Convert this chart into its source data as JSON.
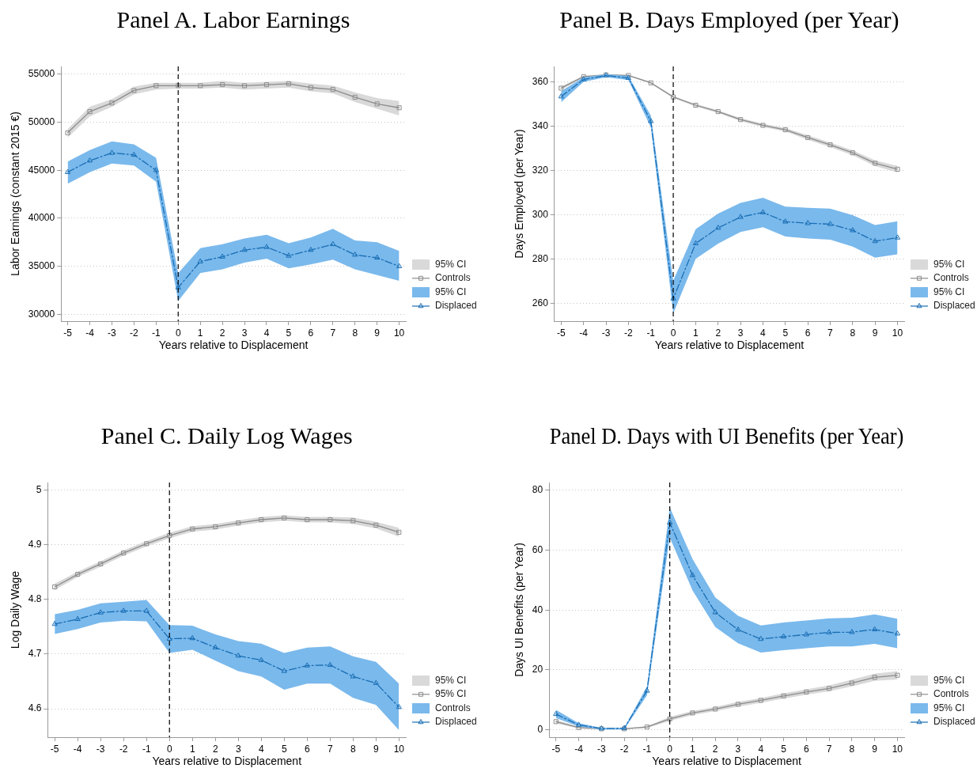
{
  "chart_data": [
    {
      "type": "line",
      "title": "Panel A. Labor Earnings",
      "xlabel": "Years relative to Displacement",
      "ylabel": "Labor Earnings (constant 2015 €)",
      "x": [
        -5,
        -4,
        -3,
        -2,
        -1,
        0,
        1,
        2,
        3,
        4,
        5,
        6,
        7,
        8,
        9,
        10
      ],
      "xlim": [
        -5.3,
        10.3
      ],
      "xticks": [
        -5,
        -4,
        -3,
        -2,
        -1,
        0,
        1,
        2,
        3,
        4,
        5,
        6,
        7,
        8,
        9,
        10
      ],
      "ylim": [
        29300,
        55800
      ],
      "yticks": [
        30000,
        35000,
        40000,
        45000,
        50000,
        55000
      ],
      "grid": "y",
      "legend": "bottom right",
      "annotations": [
        "95% CI",
        "95% CI"
      ],
      "ref_lines": [
        {
          "axis": "x",
          "value": 0,
          "line_style": "dashed",
          "color": "#000000"
        }
      ],
      "series": [
        {
          "name": "Controls",
          "color": "#8c8c8c",
          "marker": "square",
          "line_style": "solid",
          "values": [
            48900,
            51100,
            52000,
            53300,
            53800,
            53800,
            53800,
            53900,
            53800,
            53900,
            54000,
            53600,
            53400,
            52600,
            51900,
            51500
          ],
          "lower": [
            48400,
            50600,
            51600,
            52900,
            53400,
            53500,
            53500,
            53600,
            53400,
            53500,
            53600,
            53200,
            53000,
            52100,
            51400,
            50700
          ],
          "upper": [
            49300,
            51600,
            52400,
            53700,
            54100,
            54100,
            54100,
            54300,
            54100,
            54200,
            54300,
            54000,
            53800,
            53100,
            52500,
            52200
          ]
        },
        {
          "name": "Displaced",
          "color": "#196eb4",
          "marker": "triangle",
          "line_style": "dashed",
          "values": [
            44800,
            46000,
            46800,
            46600,
            45000,
            32800,
            35500,
            36000,
            36700,
            37000,
            36100,
            36700,
            37300,
            36200,
            35900,
            35000
          ],
          "lower": [
            43600,
            44800,
            45700,
            45500,
            43800,
            31400,
            34300,
            34700,
            35400,
            35800,
            34800,
            35200,
            35700,
            34700,
            34100,
            33500
          ],
          "upper": [
            45900,
            47100,
            48000,
            47700,
            46300,
            34300,
            36900,
            37300,
            37900,
            38300,
            37400,
            38000,
            38900,
            37700,
            37500,
            36600
          ]
        }
      ]
    },
    {
      "type": "line",
      "title": "Panel B. Days Employed (per Year)",
      "xlabel": "Years relative to Displacement",
      "ylabel": "Days Employed (per Year)",
      "x": [
        -5,
        -4,
        -3,
        -2,
        -1,
        0,
        1,
        2,
        3,
        4,
        5,
        6,
        7,
        8,
        9,
        10
      ],
      "xlim": [
        -5.3,
        10.3
      ],
      "xticks": [
        -5,
        -4,
        -3,
        -2,
        -1,
        0,
        1,
        2,
        3,
        4,
        5,
        6,
        7,
        8,
        9,
        10
      ],
      "ylim": [
        252,
        367
      ],
      "yticks": [
        260,
        280,
        300,
        320,
        340,
        360
      ],
      "grid": "y",
      "legend": "bottom right",
      "annotations": [
        "95% CI",
        "95% CI"
      ],
      "ref_lines": [
        {
          "axis": "x",
          "value": 0,
          "line_style": "dashed",
          "color": "#000000"
        }
      ],
      "series": [
        {
          "name": "Controls",
          "color": "#8c8c8c",
          "marker": "square",
          "line_style": "solid",
          "values": [
            357.2,
            362.4,
            363.2,
            362.9,
            359.6,
            353.2,
            349.5,
            346.6,
            343.0,
            340.4,
            338.4,
            334.9,
            331.6,
            328.0,
            323.3,
            320.6
          ],
          "lower": [
            356.4,
            362.0,
            362.9,
            362.6,
            359.2,
            352.8,
            348.9,
            346.0,
            342.3,
            339.7,
            337.6,
            333.9,
            330.6,
            326.9,
            322.0,
            319.1
          ],
          "upper": [
            358.0,
            362.8,
            363.5,
            363.2,
            360.0,
            353.6,
            350.1,
            347.2,
            343.7,
            341.1,
            339.2,
            335.9,
            332.6,
            329.1,
            324.6,
            322.1
          ]
        },
        {
          "name": "Displaced",
          "color": "#196eb4",
          "marker": "triangle",
          "line_style": "dashed",
          "values": [
            353.4,
            361.1,
            362.9,
            361.8,
            342.3,
            262.2,
            287.1,
            294.1,
            299.0,
            301.1,
            296.9,
            296.2,
            295.8,
            293.0,
            288.1,
            289.7
          ],
          "lower": [
            350.8,
            360.0,
            362.2,
            360.8,
            339.5,
            255.5,
            280.1,
            287.0,
            292.3,
            294.4,
            290.2,
            289.3,
            288.8,
            285.7,
            280.7,
            282.2
          ],
          "upper": [
            355.8,
            362.1,
            363.4,
            362.7,
            344.9,
            270.3,
            293.5,
            300.6,
            305.4,
            307.7,
            303.7,
            303.2,
            302.8,
            299.9,
            295.4,
            297.1
          ]
        }
      ]
    },
    {
      "type": "line",
      "title": "Panel C. Daily Log Wages",
      "xlabel": "Years relative to Displacement",
      "ylabel": "Log Daily Wage",
      "x": [
        -5,
        -4,
        -3,
        -2,
        -1,
        0,
        1,
        2,
        3,
        4,
        5,
        6,
        7,
        8,
        9,
        10
      ],
      "xlim": [
        -5.3,
        10.3
      ],
      "xticks": [
        -5,
        -4,
        -3,
        -2,
        -1,
        0,
        1,
        2,
        3,
        4,
        5,
        6,
        7,
        8,
        9,
        10
      ],
      "ylim": [
        4.548,
        5.014
      ],
      "yticks": [
        4.6,
        4.7,
        4.8,
        4.9,
        5
      ],
      "grid": "y",
      "legend": "bottom right",
      "annotations": [
        "95% CI",
        "Controls"
      ],
      "ref_lines": [
        {
          "axis": "x",
          "value": 0,
          "line_style": "dashed",
          "color": "#000000"
        }
      ],
      "series": [
        {
          "name": "95% CI",
          "color": "#8c8c8c",
          "marker": "square",
          "line_style": "solid",
          "values": [
            4.823,
            4.846,
            4.865,
            4.885,
            4.902,
            4.917,
            4.929,
            4.933,
            4.94,
            4.946,
            4.949,
            4.946,
            4.946,
            4.944,
            4.936,
            4.923
          ],
          "lower": [
            4.817,
            4.841,
            4.86,
            4.88,
            4.897,
            4.912,
            4.924,
            4.928,
            4.935,
            4.941,
            4.944,
            4.941,
            4.941,
            4.938,
            4.93,
            4.915
          ],
          "upper": [
            4.829,
            4.851,
            4.87,
            4.89,
            4.907,
            4.922,
            4.934,
            4.938,
            4.945,
            4.951,
            4.954,
            4.951,
            4.951,
            4.95,
            4.942,
            4.931
          ]
        },
        {
          "name": "Displaced",
          "color": "#196eb4",
          "marker": "triangle",
          "line_style": "dashed",
          "values": [
            4.755,
            4.764,
            4.776,
            4.779,
            4.779,
            4.728,
            4.729,
            4.712,
            4.697,
            4.689,
            4.669,
            4.679,
            4.68,
            4.659,
            4.647,
            4.603
          ],
          "lower": [
            4.737,
            4.746,
            4.758,
            4.761,
            4.76,
            4.702,
            4.708,
            4.688,
            4.669,
            4.659,
            4.635,
            4.646,
            4.646,
            4.62,
            4.607,
            4.561
          ],
          "upper": [
            4.773,
            4.781,
            4.793,
            4.796,
            4.799,
            4.753,
            4.752,
            4.736,
            4.724,
            4.719,
            4.702,
            4.712,
            4.714,
            4.696,
            4.686,
            4.646
          ]
        }
      ]
    },
    {
      "type": "line",
      "title": "Panel D. Days with UI Benefits (per Year)",
      "xlabel": "Years relative to Displacement",
      "ylabel": "Days UI Benefits (per Year)",
      "x": [
        -5,
        -4,
        -3,
        -2,
        -1,
        0,
        1,
        2,
        3,
        4,
        5,
        6,
        7,
        8,
        9,
        10
      ],
      "xlim": [
        -5.3,
        10.3
      ],
      "xticks": [
        -5,
        -4,
        -3,
        -2,
        -1,
        0,
        1,
        2,
        3,
        4,
        5,
        6,
        7,
        8,
        9,
        10
      ],
      "ylim": [
        -2.5,
        82.6
      ],
      "yticks": [
        0,
        20,
        40,
        60,
        80
      ],
      "grid": "y",
      "legend": "bottom right",
      "annotations": [
        "95% CI",
        "95% CI"
      ],
      "ref_lines": [
        {
          "axis": "x",
          "value": 0,
          "line_style": "dashed",
          "color": "#000000"
        }
      ],
      "series": [
        {
          "name": "Controls",
          "color": "#8c8c8c",
          "marker": "square",
          "line_style": "solid",
          "values": [
            2.7,
            0.7,
            0.3,
            0.3,
            0.9,
            3.6,
            5.6,
            6.9,
            8.5,
            9.8,
            11.3,
            12.6,
            13.8,
            15.6,
            17.5,
            18.2
          ],
          "lower": [
            2.1,
            0.4,
            0.1,
            0.1,
            0.6,
            2.9,
            4.9,
            6.2,
            7.7,
            9.0,
            10.4,
            11.7,
            12.8,
            14.5,
            16.3,
            16.8
          ],
          "upper": [
            3.3,
            1.0,
            0.5,
            0.5,
            1.2,
            4.3,
            6.3,
            7.6,
            9.3,
            10.6,
            12.2,
            13.5,
            14.8,
            16.7,
            18.7,
            19.6
          ]
        },
        {
          "name": "Displaced",
          "color": "#196eb4",
          "marker": "triangle",
          "line_style": "dashed",
          "values": [
            5.2,
            1.6,
            0.4,
            0.5,
            13.0,
            69.2,
            51.6,
            39.2,
            33.4,
            30.3,
            31.1,
            31.8,
            32.5,
            32.6,
            33.5,
            32.1
          ],
          "lower": [
            3.9,
            1.1,
            0.1,
            0.1,
            11.5,
            64.2,
            46.5,
            34.3,
            28.9,
            25.8,
            26.6,
            27.2,
            27.8,
            27.8,
            28.7,
            27.2
          ],
          "upper": [
            6.6,
            2.2,
            0.6,
            0.7,
            14.5,
            74.3,
            57.0,
            44.2,
            38.1,
            34.8,
            35.8,
            36.5,
            37.2,
            37.4,
            38.5,
            37.1
          ]
        }
      ]
    }
  ]
}
